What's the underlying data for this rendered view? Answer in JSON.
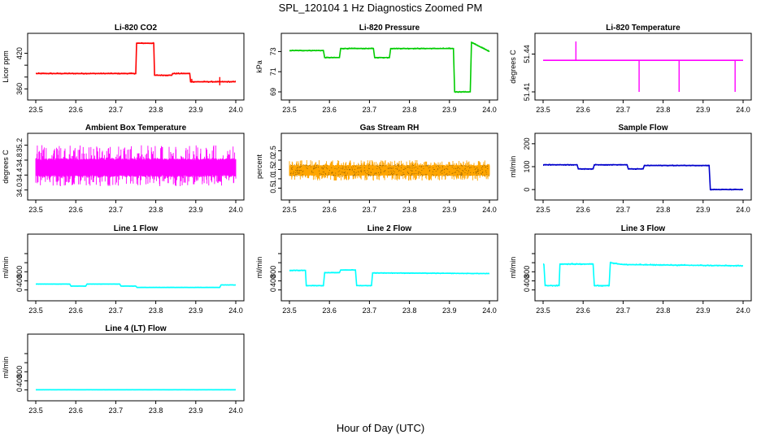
{
  "figure": {
    "title": "SPL_120104  1 Hz Diagnostics Zoomed PM",
    "xlabel": "Hour of Day (UTC)"
  },
  "chart_data": [
    {
      "type": "line",
      "title": "Li-820 CO2",
      "xlabel": "",
      "ylabel": "Licor ppm",
      "xlim": [
        23.5,
        24.0
      ],
      "ylim": [
        355,
        440
      ],
      "xticks": [
        23.5,
        23.6,
        23.7,
        23.8,
        23.9,
        24.0
      ],
      "xtick_labels": [
        "23.5",
        "23.6",
        "23.7",
        "23.8",
        "23.9",
        "24.0"
      ],
      "yticks": [
        360,
        380,
        400,
        420
      ],
      "ytick_labels": [
        "360",
        "",
        "",
        "420"
      ],
      "color": "#ff0000",
      "noise": 1.0,
      "style": "line",
      "series": [
        {
          "x": [
            23.5,
            23.75,
            23.752,
            23.795,
            23.797,
            23.84,
            23.842,
            23.885,
            23.887,
            24.0
          ],
          "y": [
            386,
            386,
            437,
            437,
            383,
            383,
            386,
            386,
            372,
            372
          ]
        }
      ],
      "spikes": [
        {
          "x": 23.89,
          "y": 377
        },
        {
          "x": 23.96,
          "y": 380
        },
        {
          "x": 23.96,
          "y": 366
        }
      ]
    },
    {
      "type": "line",
      "title": "Li-820 Pressure",
      "xlabel": "",
      "ylabel": "kPa",
      "xlim": [
        23.5,
        24.0
      ],
      "ylim": [
        69,
        74
      ],
      "xticks": [
        23.5,
        23.6,
        23.7,
        23.8,
        23.9,
        24.0
      ],
      "xtick_labels": [
        "23.5",
        "23.6",
        "23.7",
        "23.8",
        "23.9",
        "24.0"
      ],
      "yticks": [
        69,
        71,
        73
      ],
      "ytick_labels": [
        "69",
        "71",
        "73"
      ],
      "color": "#00cc00",
      "noise": 0.05,
      "style": "line",
      "series": [
        {
          "x": [
            23.5,
            23.585,
            23.588,
            23.625,
            23.628,
            23.71,
            23.713,
            23.75,
            23.753,
            23.91,
            23.913,
            23.952,
            23.955,
            24.0
          ],
          "y": [
            73.1,
            73.1,
            72.4,
            72.4,
            73.3,
            73.3,
            72.4,
            72.4,
            73.3,
            73.3,
            69.0,
            69.0,
            73.9,
            73.0
          ]
        }
      ],
      "spikes": []
    },
    {
      "type": "line",
      "title": "Li-820 Temperature",
      "xlabel": "",
      "ylabel": "degrees C",
      "xlim": [
        23.5,
        24.0
      ],
      "ylim": [
        51.41,
        51.45
      ],
      "xticks": [
        23.5,
        23.6,
        23.7,
        23.8,
        23.9,
        24.0
      ],
      "xtick_labels": [
        "23.5",
        "23.6",
        "23.7",
        "23.8",
        "23.9",
        "24.0"
      ],
      "yticks": [
        51.41,
        51.44
      ],
      "ytick_labels": [
        "51.41",
        "51.44"
      ],
      "color": "#ff00ff",
      "noise": 0.0,
      "style": "line",
      "series": [
        {
          "x": [
            23.5,
            24.0
          ],
          "y": [
            51.435,
            51.435
          ]
        }
      ],
      "spikes": [
        {
          "x": 23.582,
          "y": 51.45
        },
        {
          "x": 23.74,
          "y": 51.41
        },
        {
          "x": 23.84,
          "y": 51.41
        },
        {
          "x": 23.98,
          "y": 51.41
        }
      ]
    },
    {
      "type": "line",
      "title": "Ambient Box Temperature",
      "xlabel": "",
      "ylabel": "degrees C",
      "xlim": [
        23.5,
        24.0
      ],
      "ylim": [
        33.95,
        35.3
      ],
      "xticks": [
        23.5,
        23.6,
        23.7,
        23.8,
        23.9,
        24.0
      ],
      "xtick_labels": [
        "23.5",
        "23.6",
        "23.7",
        "23.8",
        "23.9",
        "24.0"
      ],
      "yticks": [
        34.0,
        34.4,
        34.8,
        35.2
      ],
      "ytick_labels": [
        "34.0",
        "34.4",
        "34.8",
        "35.2"
      ],
      "color": "#ff00ff",
      "style": "band",
      "band": {
        "low": 34.1,
        "high": 35.2,
        "mid_low": 34.35,
        "mid_high": 34.85
      }
    },
    {
      "type": "scatter",
      "title": "Gas Stream RH",
      "xlabel": "",
      "ylabel": "percent",
      "xlim": [
        23.5,
        24.0
      ],
      "ylim": [
        0.3,
        3.0
      ],
      "xticks": [
        23.5,
        23.6,
        23.7,
        23.8,
        23.9,
        24.0
      ],
      "xtick_labels": [
        "23.5",
        "23.6",
        "23.7",
        "23.8",
        "23.9",
        "24.0"
      ],
      "yticks": [
        0.5,
        1.0,
        1.5,
        2.0,
        2.5
      ],
      "ytick_labels": [
        "0.5",
        "1.0",
        "1.5",
        "2.0",
        "2.5"
      ],
      "color": "#ffa500",
      "style": "band",
      "band": {
        "low": 0.9,
        "high": 2.0,
        "mid_low": 1.15,
        "mid_high": 1.75
      }
    },
    {
      "type": "line",
      "title": "Sample Flow",
      "xlabel": "",
      "ylabel": "ml/min",
      "xlim": [
        23.5,
        24.0
      ],
      "ylim": [
        -10,
        210
      ],
      "xticks": [
        23.5,
        23.6,
        23.7,
        23.8,
        23.9,
        24.0
      ],
      "xtick_labels": [
        "23.5",
        "23.6",
        "23.7",
        "23.8",
        "23.9",
        "24.0"
      ],
      "yticks": [
        0,
        100,
        200
      ],
      "ytick_labels": [
        "0",
        "100",
        "200"
      ],
      "color": "#0000cc",
      "noise": 2.0,
      "style": "line",
      "series": [
        {
          "x": [
            23.5,
            23.585,
            23.588,
            23.625,
            23.628,
            23.71,
            23.713,
            23.75,
            23.753,
            23.915,
            23.918,
            24.0
          ],
          "y": [
            108,
            108,
            90,
            90,
            108,
            108,
            90,
            90,
            105,
            105,
            0,
            0
          ]
        }
      ],
      "spikes": []
    },
    {
      "type": "line",
      "title": "Line 1 Flow",
      "xlabel": "",
      "ylabel": "ml/min",
      "xlim": [
        23.5,
        24.0
      ],
      "ylim": [
        -60,
        1050
      ],
      "xticks": [
        23.5,
        23.6,
        23.7,
        23.8,
        23.9,
        24.0
      ],
      "xtick_labels": [
        "23.5",
        "23.6",
        "23.7",
        "23.8",
        "23.9",
        "24.0"
      ],
      "yticks": [
        0,
        200,
        400,
        600,
        800
      ],
      "ytick_labels": [
        "0",
        "400",
        "800"
      ],
      "color": "#00ffff",
      "noise": 4.0,
      "style": "line",
      "series": [
        {
          "x": [
            23.5,
            23.585,
            23.588,
            23.625,
            23.628,
            23.71,
            23.713,
            23.75,
            23.753,
            23.96,
            23.963,
            24.0
          ],
          "y": [
            130,
            130,
            85,
            85,
            130,
            130,
            85,
            85,
            55,
            55,
            110,
            110
          ]
        }
      ],
      "spikes": []
    },
    {
      "type": "line",
      "title": "Line 2 Flow",
      "xlabel": "",
      "ylabel": "ml/min",
      "xlim": [
        23.5,
        24.0
      ],
      "ylim": [
        -60,
        1050
      ],
      "xticks": [
        23.5,
        23.6,
        23.7,
        23.8,
        23.9,
        24.0
      ],
      "xtick_labels": [
        "23.5",
        "23.6",
        "23.7",
        "23.8",
        "23.9",
        "24.0"
      ],
      "yticks": [
        0,
        200,
        400,
        600,
        800
      ],
      "ytick_labels": [
        "0",
        "400",
        "800"
      ],
      "color": "#00ffff",
      "noise": 8.0,
      "style": "line",
      "series": [
        {
          "x": [
            23.5,
            23.54,
            23.542,
            23.585,
            23.588,
            23.625,
            23.628,
            23.665,
            23.668,
            23.705,
            23.708,
            24.0
          ],
          "y": [
            430,
            430,
            95,
            95,
            380,
            380,
            440,
            440,
            95,
            95,
            375,
            360
          ]
        }
      ],
      "spikes": []
    },
    {
      "type": "line",
      "title": "Line 3 Flow",
      "xlabel": "",
      "ylabel": "ml/min",
      "xlim": [
        23.5,
        24.0
      ],
      "ylim": [
        -60,
        1050
      ],
      "xticks": [
        23.5,
        23.6,
        23.7,
        23.8,
        23.9,
        24.0
      ],
      "xtick_labels": [
        "23.5",
        "23.6",
        "23.7",
        "23.8",
        "23.9",
        "24.0"
      ],
      "yticks": [
        0,
        200,
        400,
        600,
        800
      ],
      "ytick_labels": [
        "0",
        "400",
        "800"
      ],
      "color": "#00ffff",
      "noise": 14.0,
      "style": "line",
      "series": [
        {
          "x": [
            23.5,
            23.502,
            23.505,
            23.54,
            23.542,
            23.625,
            23.628,
            23.665,
            23.668,
            23.7,
            24.0
          ],
          "y": [
            560,
            560,
            95,
            95,
            570,
            570,
            95,
            95,
            600,
            560,
            530
          ]
        }
      ],
      "spikes": []
    },
    {
      "type": "line",
      "title": "Line 4 (LT) Flow",
      "xlabel": "",
      "ylabel": "ml/min",
      "xlim": [
        23.5,
        24.0
      ],
      "ylim": [
        -60,
        1050
      ],
      "xticks": [
        23.5,
        23.6,
        23.7,
        23.8,
        23.9,
        24.0
      ],
      "xtick_labels": [
        "23.5",
        "23.6",
        "23.7",
        "23.8",
        "23.9",
        "24.0"
      ],
      "yticks": [
        0,
        200,
        400,
        600,
        800
      ],
      "ytick_labels": [
        "0",
        "400",
        "800"
      ],
      "color": "#00ffff",
      "noise": 1.5,
      "style": "line",
      "series": [
        {
          "x": [
            23.5,
            24.0
          ],
          "y": [
            5,
            5
          ]
        }
      ],
      "spikes": []
    }
  ]
}
